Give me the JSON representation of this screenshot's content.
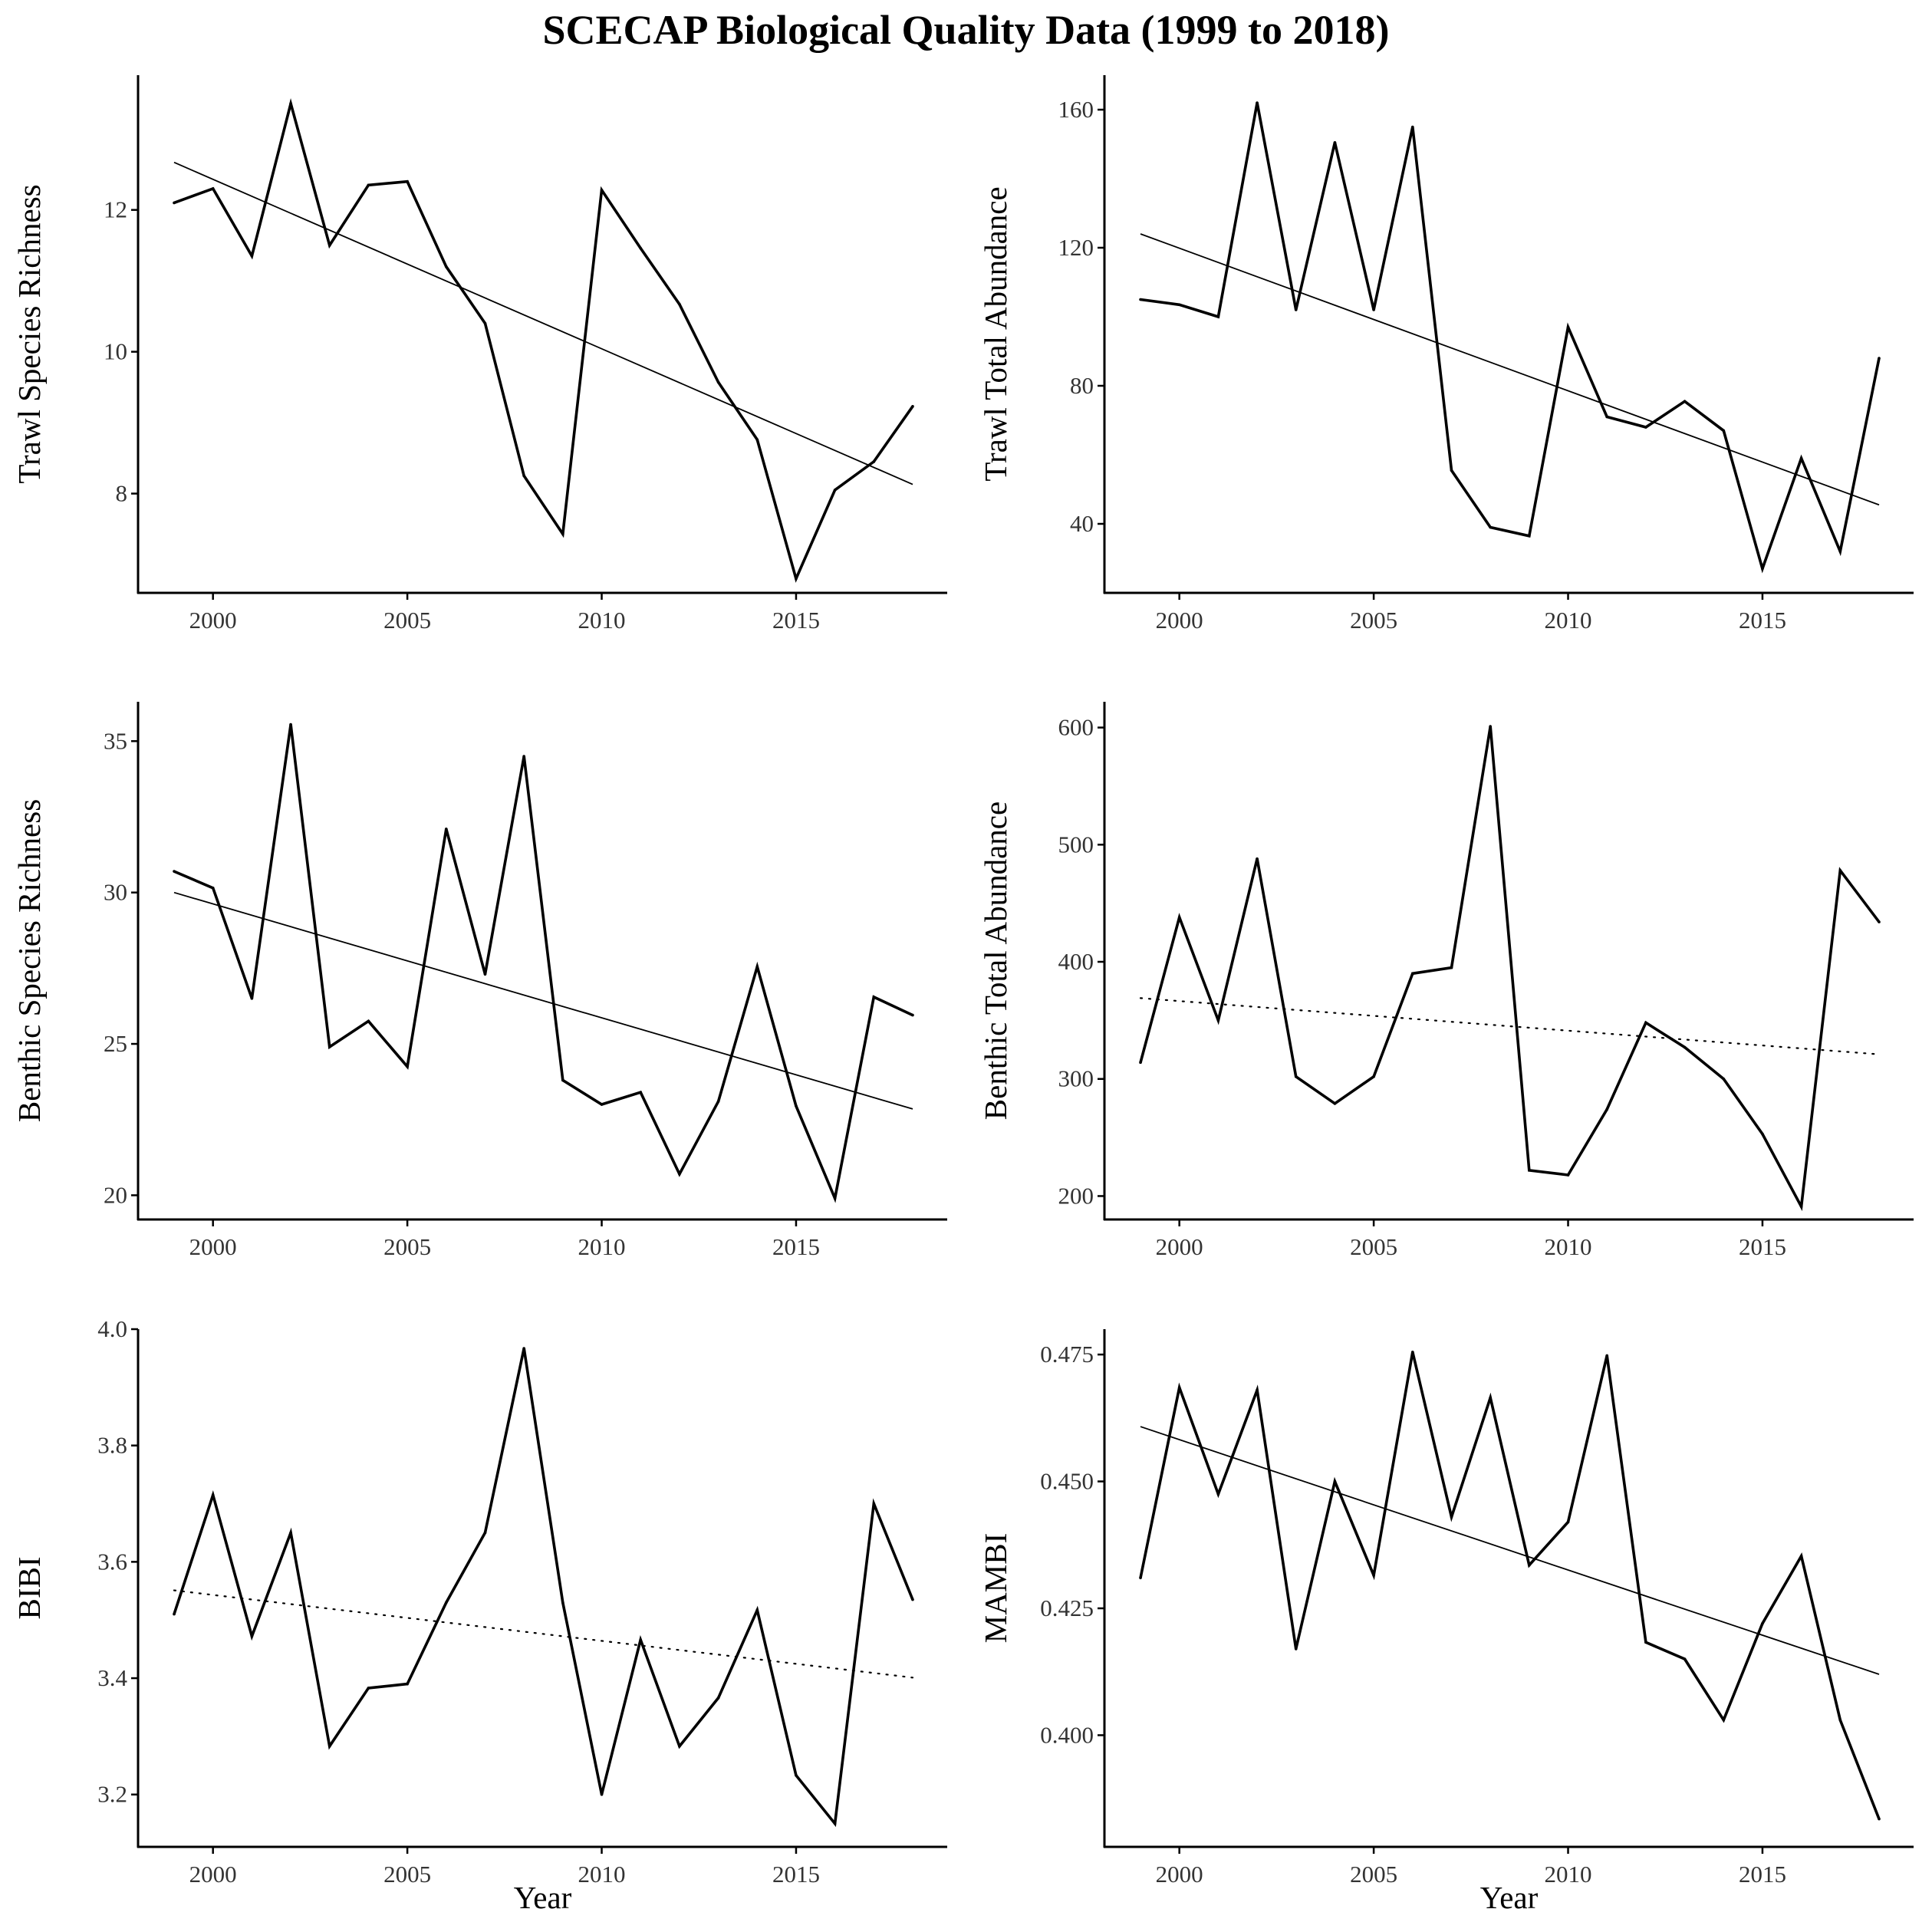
{
  "title": "SCECAP Biological Quality Data (1999 to 2018)",
  "colors": {
    "line": "#000000",
    "axis": "#000000",
    "tick_label": "#333333",
    "background": "#ffffff"
  },
  "chart_data": [
    {
      "type": "line",
      "ylabel": "Trawl Species Richness",
      "xlabel": "",
      "xlim": [
        1999,
        2018
      ],
      "ylim": [
        6.6,
        13.9
      ],
      "xticks": [
        2000,
        2005,
        2010,
        2015
      ],
      "yticks": [
        8,
        10,
        12
      ],
      "grid": false,
      "x": [
        1999,
        2000,
        2001,
        2002,
        2003,
        2004,
        2005,
        2006,
        2007,
        2008,
        2009,
        2010,
        2011,
        2012,
        2013,
        2014,
        2015,
        2016,
        2017,
        2018
      ],
      "values": [
        12.1,
        12.3,
        11.35,
        13.5,
        11.5,
        12.35,
        12.4,
        11.2,
        10.4,
        8.25,
        7.43,
        12.28,
        11.46,
        10.67,
        9.57,
        8.76,
        6.8,
        8.05,
        8.45,
        9.23
      ],
      "trend": {
        "x": [
          1999,
          2018
        ],
        "y": [
          12.67,
          8.13
        ],
        "style": "solid"
      }
    },
    {
      "type": "line",
      "ylabel": "Trawl Total Abundance",
      "xlabel": "",
      "xlim": [
        1999,
        2018
      ],
      "ylim": [
        20,
        170
      ],
      "xticks": [
        2000,
        2005,
        2010,
        2015
      ],
      "yticks": [
        40,
        80,
        120,
        160
      ],
      "grid": false,
      "x": [
        1999,
        2000,
        2001,
        2002,
        2003,
        2004,
        2005,
        2006,
        2007,
        2008,
        2009,
        2010,
        2011,
        2012,
        2013,
        2014,
        2015,
        2016,
        2017,
        2018
      ],
      "values": [
        105,
        103.5,
        100,
        162,
        102,
        150.5,
        102,
        155,
        55.5,
        39,
        36.5,
        97,
        71,
        68,
        75.5,
        67,
        27,
        59,
        32,
        88
      ],
      "trend": {
        "x": [
          1999,
          2018
        ],
        "y": [
          124,
          45.5
        ],
        "style": "solid"
      }
    },
    {
      "type": "line",
      "ylabel": "Benthic Species Richness",
      "xlabel": "",
      "xlim": [
        1999,
        2018
      ],
      "ylim": [
        19.2,
        36.3
      ],
      "xticks": [
        2000,
        2005,
        2010,
        2015
      ],
      "yticks": [
        20,
        25,
        30,
        35
      ],
      "grid": false,
      "x": [
        1999,
        2000,
        2001,
        2002,
        2003,
        2004,
        2005,
        2006,
        2007,
        2008,
        2009,
        2010,
        2011,
        2012,
        2013,
        2014,
        2015,
        2016,
        2017,
        2018
      ],
      "values": [
        30.7,
        30.15,
        26.5,
        35.55,
        24.9,
        25.75,
        24.25,
        32.1,
        27.3,
        34.5,
        23.8,
        23.0,
        23.4,
        20.7,
        23.1,
        27.55,
        22.95,
        19.9,
        26.55,
        25.95
      ],
      "trend": {
        "x": [
          1999,
          2018
        ],
        "y": [
          30.0,
          22.85
        ],
        "style": "solid"
      }
    },
    {
      "type": "line",
      "ylabel": "Benthic Total Abundance",
      "xlabel": "",
      "xlim": [
        1999,
        2018
      ],
      "ylim": [
        180,
        622
      ],
      "xticks": [
        2000,
        2005,
        2010,
        2015
      ],
      "yticks": [
        200,
        300,
        400,
        500,
        600
      ],
      "grid": false,
      "x": [
        1999,
        2000,
        2001,
        2002,
        2003,
        2004,
        2005,
        2006,
        2007,
        2008,
        2009,
        2010,
        2011,
        2012,
        2013,
        2014,
        2015,
        2016,
        2017,
        2018
      ],
      "values": [
        314,
        438,
        350,
        488,
        302,
        279,
        302,
        390,
        395,
        601,
        222,
        218,
        274,
        348,
        327,
        300,
        253,
        191,
        478,
        434
      ],
      "trend": {
        "x": [
          1999,
          2018
        ],
        "y": [
          369,
          321
        ],
        "style": "dotted"
      }
    },
    {
      "type": "line",
      "ylabel": "BIBI",
      "xlabel": "Year",
      "xlim": [
        1999,
        2018
      ],
      "ylim": [
        3.11,
        4.0
      ],
      "xticks": [
        2000,
        2005,
        2010,
        2015
      ],
      "yticks": [
        3.2,
        3.4,
        3.6,
        3.8,
        4.0
      ],
      "ytick_labels": [
        "3.2",
        "3.4",
        "3.6",
        "3.8",
        "4.0"
      ],
      "grid": false,
      "x": [
        1999,
        2000,
        2001,
        2002,
        2003,
        2004,
        2005,
        2006,
        2007,
        2008,
        2009,
        2010,
        2011,
        2012,
        2013,
        2014,
        2015,
        2016,
        2017,
        2018
      ],
      "values": [
        3.51,
        3.715,
        3.472,
        3.65,
        3.283,
        3.383,
        3.39,
        3.53,
        3.65,
        3.967,
        3.53,
        3.2,
        3.466,
        3.283,
        3.366,
        3.517,
        3.233,
        3.15,
        3.7,
        3.535
      ],
      "trend": {
        "x": [
          1999,
          2018
        ],
        "y": [
          3.551,
          3.401
        ],
        "style": "dotted"
      }
    },
    {
      "type": "line",
      "ylabel": "MAMBI",
      "xlabel": "Year",
      "xlim": [
        1999,
        2018
      ],
      "ylim": [
        0.378,
        0.48
      ],
      "xticks": [
        2000,
        2005,
        2010,
        2015
      ],
      "yticks": [
        0.4,
        0.425,
        0.45,
        0.475
      ],
      "ytick_labels": [
        "0.400",
        "0.425",
        "0.450",
        "0.475"
      ],
      "grid": false,
      "x": [
        1999,
        2000,
        2001,
        2002,
        2003,
        2004,
        2005,
        2006,
        2007,
        2008,
        2009,
        2010,
        2011,
        2012,
        2013,
        2014,
        2015,
        2016,
        2017,
        2018
      ],
      "values": [
        0.431,
        0.4685,
        0.4475,
        0.468,
        0.417,
        0.45,
        0.4315,
        0.4755,
        0.443,
        0.4665,
        0.4335,
        0.442,
        0.4748,
        0.4183,
        0.415,
        0.403,
        0.422,
        0.4353,
        0.403,
        0.3835
      ],
      "trend": {
        "x": [
          1999,
          2018
        ],
        "y": [
          0.4608,
          0.412
        ],
        "style": "solid"
      }
    }
  ]
}
